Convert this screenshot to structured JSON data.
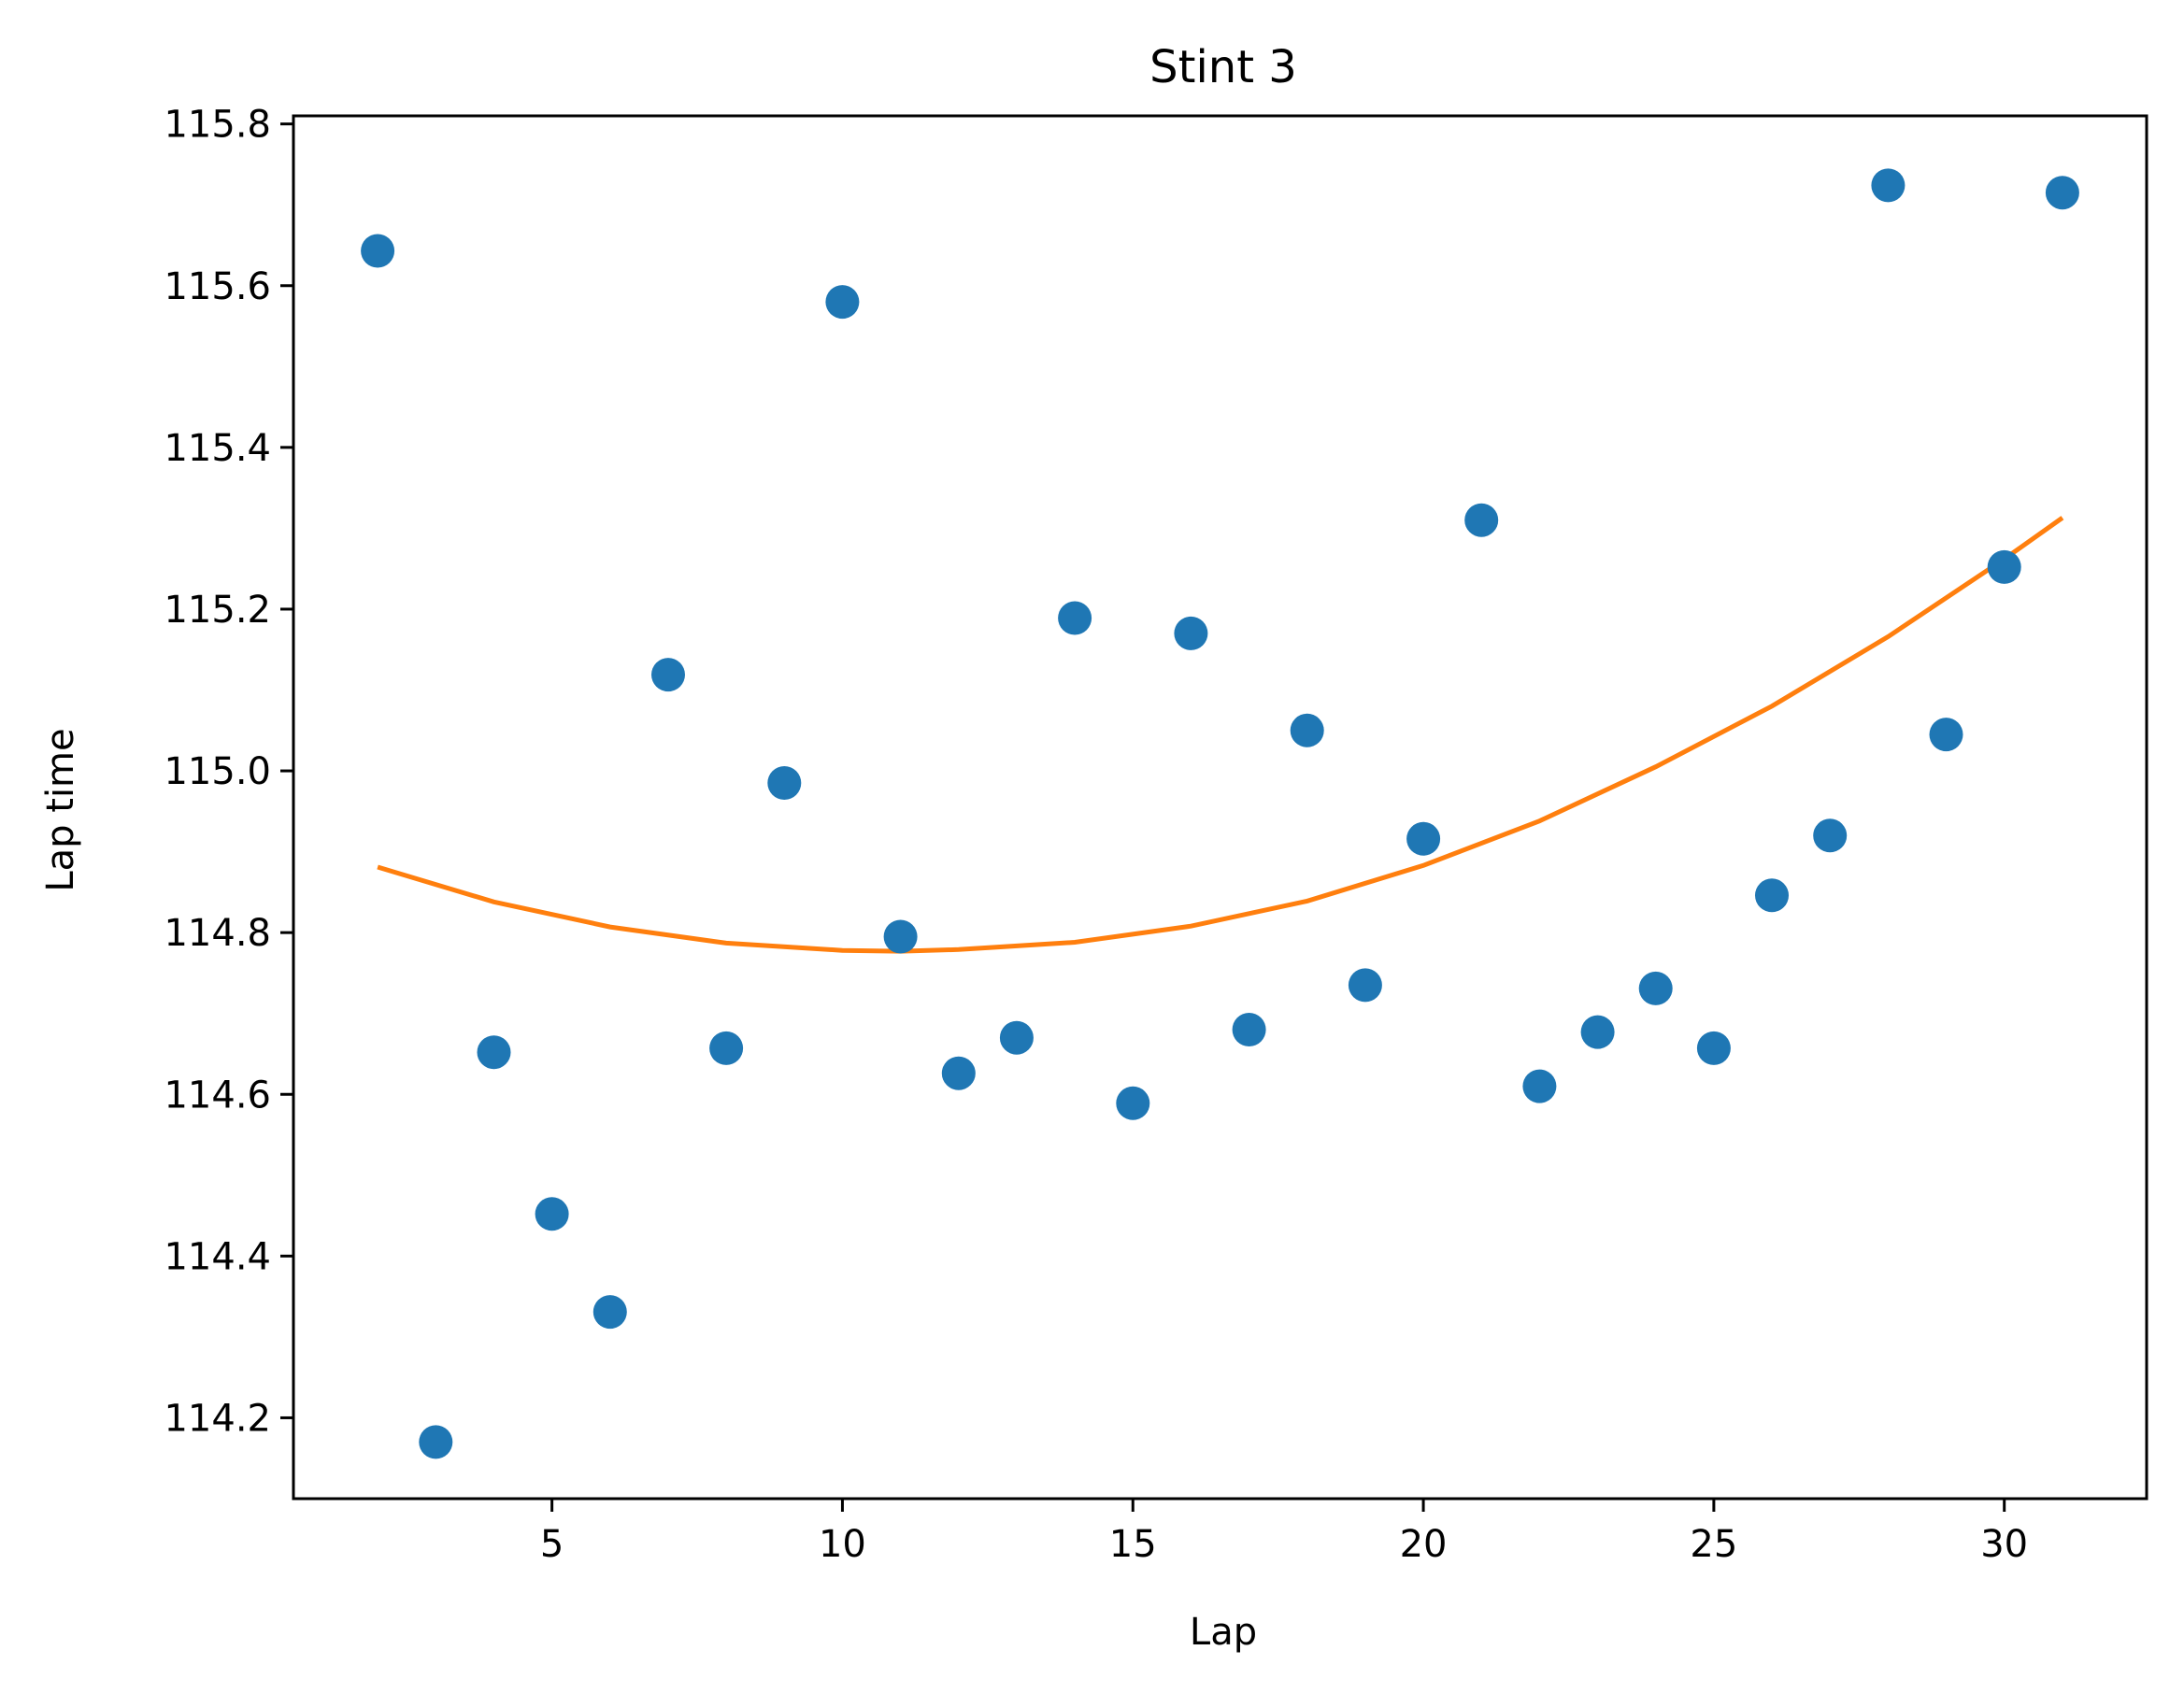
{
  "chart_data": {
    "type": "scatter",
    "title": "Stint 3",
    "xlabel": "Lap",
    "ylabel": "Lap time",
    "xlim": [
      0.55,
      32.45
    ],
    "ylim": [
      114.1,
      115.81
    ],
    "xticks": [
      5,
      10,
      15,
      20,
      25,
      30
    ],
    "yticks": [
      114.2,
      114.4,
      114.6,
      114.8,
      115.0,
      115.2,
      115.4,
      115.6,
      115.8
    ],
    "grid": false,
    "legend": "none",
    "series": [
      {
        "kind": "scatter",
        "color": "#1f77b4",
        "points": [
          {
            "x": 2,
            "y": 115.643
          },
          {
            "x": 3,
            "y": 114.17
          },
          {
            "x": 4,
            "y": 114.652
          },
          {
            "x": 5,
            "y": 114.452
          },
          {
            "x": 6,
            "y": 114.331
          },
          {
            "x": 7,
            "y": 115.119
          },
          {
            "x": 8,
            "y": 114.657
          },
          {
            "x": 9,
            "y": 114.985
          },
          {
            "x": 10,
            "y": 115.58
          },
          {
            "x": 11,
            "y": 114.795
          },
          {
            "x": 12,
            "y": 114.626
          },
          {
            "x": 13,
            "y": 114.67
          },
          {
            "x": 14,
            "y": 115.189
          },
          {
            "x": 15,
            "y": 114.589
          },
          {
            "x": 16,
            "y": 115.17
          },
          {
            "x": 17,
            "y": 114.68
          },
          {
            "x": 18,
            "y": 115.05
          },
          {
            "x": 19,
            "y": 114.735
          },
          {
            "x": 20,
            "y": 114.916
          },
          {
            "x": 21,
            "y": 115.31
          },
          {
            "x": 22,
            "y": 114.61
          },
          {
            "x": 23,
            "y": 114.677
          },
          {
            "x": 24,
            "y": 114.731
          },
          {
            "x": 25,
            "y": 114.657
          },
          {
            "x": 26,
            "y": 114.846
          },
          {
            "x": 27,
            "y": 114.92
          },
          {
            "x": 28,
            "y": 115.724
          },
          {
            "x": 29,
            "y": 115.045
          },
          {
            "x": 30,
            "y": 115.252
          },
          {
            "x": 31,
            "y": 115.715
          }
        ]
      },
      {
        "kind": "line",
        "color": "#ff7f0e",
        "points": [
          {
            "x": 2,
            "y": 114.881
          },
          {
            "x": 4,
            "y": 114.838
          },
          {
            "x": 6,
            "y": 114.807
          },
          {
            "x": 8,
            "y": 114.787
          },
          {
            "x": 10,
            "y": 114.778
          },
          {
            "x": 11,
            "y": 114.777
          },
          {
            "x": 12,
            "y": 114.779
          },
          {
            "x": 14,
            "y": 114.788
          },
          {
            "x": 16,
            "y": 114.808
          },
          {
            "x": 18,
            "y": 114.839
          },
          {
            "x": 20,
            "y": 114.883
          },
          {
            "x": 22,
            "y": 114.938
          },
          {
            "x": 24,
            "y": 115.005
          },
          {
            "x": 26,
            "y": 115.08
          },
          {
            "x": 28,
            "y": 115.166
          },
          {
            "x": 30,
            "y": 115.262
          },
          {
            "x": 31,
            "y": 115.313
          }
        ]
      }
    ]
  }
}
